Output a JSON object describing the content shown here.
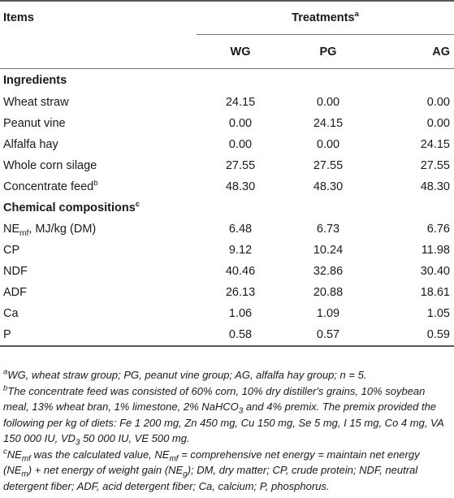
{
  "table": {
    "header": {
      "items": "Items",
      "treatments": "Treatments",
      "treatments_sup": "a",
      "columns": [
        "WG",
        "PG",
        "AG"
      ]
    },
    "section_ingredients": "Ingredients",
    "ingredients": [
      {
        "label": "Wheat straw",
        "values": [
          "24.15",
          "0.00",
          "0.00"
        ]
      },
      {
        "label": "Peanut vine",
        "values": [
          "0.00",
          "24.15",
          "0.00"
        ]
      },
      {
        "label": "Alfalfa hay",
        "values": [
          "0.00",
          "0.00",
          "24.15"
        ]
      },
      {
        "label": "Whole corn silage",
        "values": [
          "27.55",
          "27.55",
          "27.55"
        ]
      },
      {
        "label": "Concentrate feed",
        "sup": "b",
        "values": [
          "48.30",
          "48.30",
          "48.30"
        ]
      }
    ],
    "section_chemical": "Chemical compositions",
    "section_chemical_sup": "c",
    "nemf_row": {
      "label_main": "NE",
      "label_sub": "mf",
      "label_tail": ", MJ/kg (DM)",
      "values": [
        "6.48",
        "6.73",
        "6.76"
      ]
    },
    "chemical": [
      {
        "label": "CP",
        "values": [
          "9.12",
          "10.24",
          "11.98"
        ]
      },
      {
        "label": "NDF",
        "values": [
          "40.46",
          "32.86",
          "30.40"
        ]
      },
      {
        "label": "ADF",
        "values": [
          "26.13",
          "20.88",
          "18.61"
        ]
      },
      {
        "label": "Ca",
        "values": [
          "1.06",
          "1.09",
          "1.05"
        ]
      },
      {
        "label": "P",
        "values": [
          "0.58",
          "0.57",
          "0.59"
        ]
      }
    ]
  },
  "footnotes": {
    "a": {
      "mark": "a",
      "text": "WG, wheat straw group; PG, peanut vine group; AG, alfalfa hay group; n = 5."
    },
    "b": {
      "mark": "b",
      "text1": "The concentrate feed was consisted of 60% corn, 10% dry distiller's grains, 10% soybean meal, 13% wheat bran, 1% limestone, 2% NaHCO",
      "sub1": "3",
      "text2": " and 4% premix. The premix provided the following per kg of diets: Fe 1 200 mg, Zn 450 mg, Cu 150 mg, Se 5 mg, I 15 mg, Co 4 mg, VA 150 000 IU, VD",
      "sub2": "3",
      "text3": " 50 000 IU, VE 500 mg."
    },
    "c": {
      "mark": "c",
      "p1": "NE",
      "s1": "mf",
      "p2": " was the calculated value, NE",
      "s2": "mf",
      "p3": " = comprehensive net energy = maintain net energy (NE",
      "s3": "m",
      "p4": ") + net energy of weight gain (NE",
      "s4": "g",
      "p5": "); DM, dry matter; CP, crude protein; NDF, neutral detergent fiber; ADF, acid detergent fiber; Ca, calcium; P, phosphorus."
    }
  }
}
